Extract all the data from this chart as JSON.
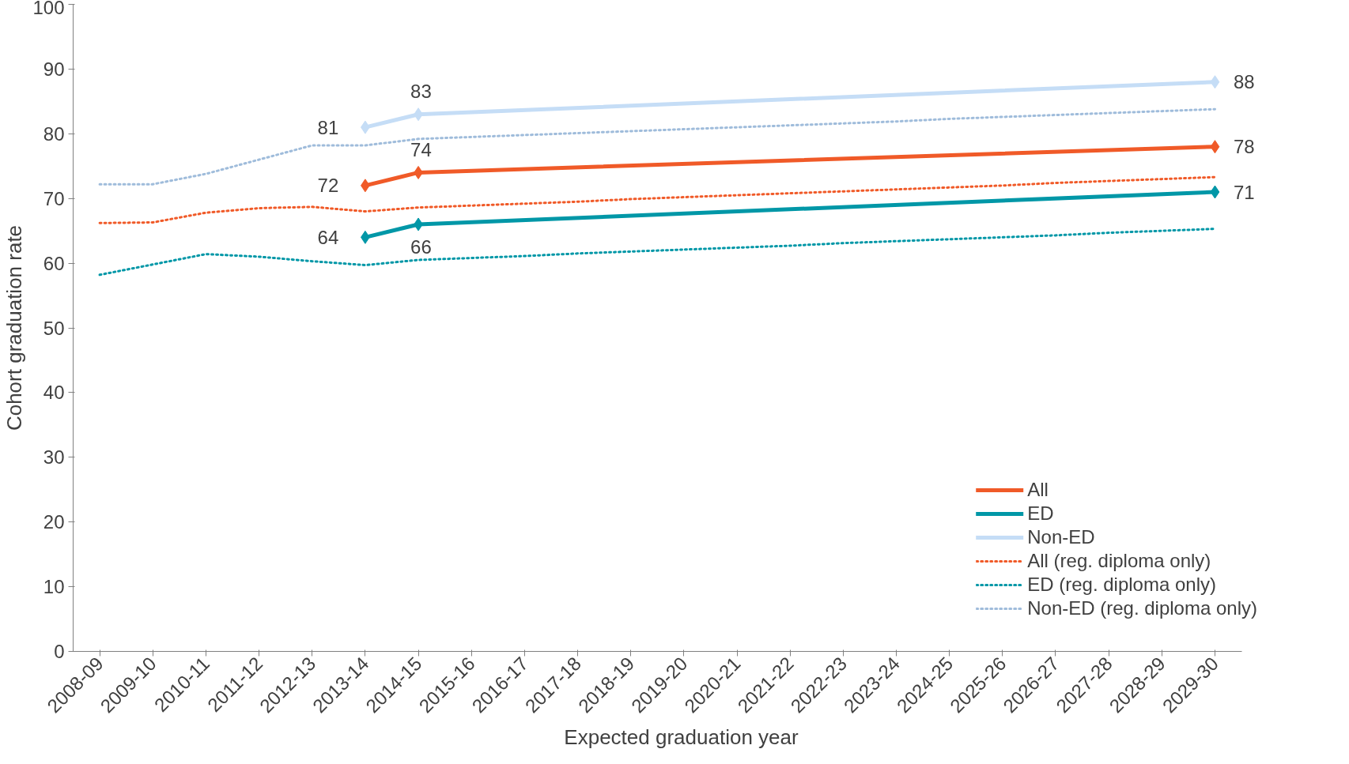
{
  "chart_data": {
    "type": "line",
    "xlabel": "Expected graduation year",
    "ylabel": "Cohort graduation rate",
    "categories": [
      "2008-09",
      "2009-10",
      "2010-11",
      "2011-12",
      "2012-13",
      "2013-14",
      "2014-15",
      "2015-16",
      "2016-17",
      "2017-18",
      "2018-19",
      "2019-20",
      "2020-21",
      "2021-22",
      "2022-23",
      "2023-24",
      "2024-25",
      "2025-26",
      "2026-27",
      "2027-28",
      "2028-29",
      "2029-30"
    ],
    "ylim": [
      0,
      100
    ],
    "yticks": [
      0,
      10,
      20,
      30,
      40,
      50,
      60,
      70,
      80,
      90,
      100
    ],
    "grid": false,
    "legend": "bottom right",
    "series": [
      {
        "name": "All",
        "color": "#f05a28",
        "line_style": "solid",
        "marker": "diamond",
        "data_labels": true,
        "x": [
          "2013-14",
          "2014-15",
          "2029-30"
        ],
        "values": [
          72,
          74,
          78
        ]
      },
      {
        "name": "ED",
        "color": "#0097a7",
        "line_style": "solid",
        "marker": "diamond",
        "data_labels": true,
        "x": [
          "2013-14",
          "2014-15",
          "2029-30"
        ],
        "values": [
          64,
          66,
          71
        ]
      },
      {
        "name": "Non-ED",
        "color": "#c5ddf6",
        "line_style": "solid",
        "marker": "diamond",
        "data_labels": true,
        "x": [
          "2013-14",
          "2014-15",
          "2029-30"
        ],
        "values": [
          81,
          83,
          88
        ]
      },
      {
        "name": "All (reg. diploma only)",
        "color": "#f05a28",
        "line_style": "dotted",
        "marker": "none",
        "values": [
          66.2,
          66.3,
          67.8,
          68.5,
          68.7,
          68.0,
          68.6,
          68.9,
          69.2,
          69.5,
          69.9,
          70.2,
          70.5,
          70.8,
          71.1,
          71.4,
          71.7,
          72.0,
          72.4,
          72.7,
          73.0,
          73.3
        ]
      },
      {
        "name": "ED (reg. diploma only)",
        "color": "#0097a7",
        "line_style": "dotted",
        "marker": "none",
        "values": [
          58.2,
          59.8,
          61.4,
          61.0,
          60.3,
          59.7,
          60.5,
          60.8,
          61.1,
          61.5,
          61.8,
          62.1,
          62.4,
          62.7,
          63.1,
          63.4,
          63.7,
          64.0,
          64.3,
          64.7,
          65.0,
          65.3
        ]
      },
      {
        "name": "Non-ED (reg. diploma only)",
        "color": "#9fbcdb",
        "line_style": "dotted",
        "marker": "none",
        "values": [
          72.2,
          72.2,
          73.8,
          76.0,
          78.2,
          78.2,
          79.2,
          79.5,
          79.8,
          80.1,
          80.4,
          80.7,
          81.0,
          81.3,
          81.6,
          81.9,
          82.3,
          82.6,
          82.9,
          83.2,
          83.5,
          83.8
        ]
      }
    ]
  }
}
